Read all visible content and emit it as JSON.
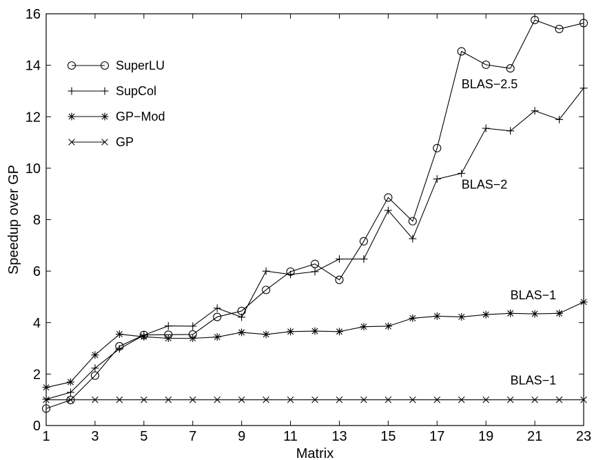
{
  "chart_data": {
    "type": "line",
    "xlabel": "Matrix",
    "ylabel": "Speedup over GP",
    "xlim": [
      1,
      23
    ],
    "ylim": [
      0,
      16
    ],
    "x_ticks": [
      1,
      3,
      5,
      7,
      9,
      11,
      13,
      15,
      17,
      19,
      21,
      23
    ],
    "y_ticks": [
      0,
      2,
      4,
      6,
      8,
      10,
      12,
      14,
      16
    ],
    "grid": false,
    "legend_position": "top-left",
    "x": [
      1,
      2,
      3,
      4,
      5,
      6,
      7,
      8,
      9,
      10,
      11,
      12,
      13,
      14,
      15,
      16,
      17,
      18,
      19,
      20,
      21,
      22,
      23
    ],
    "series": [
      {
        "name": "SuperLU",
        "marker": "circle",
        "values": [
          0.66,
          0.99,
          1.94,
          3.08,
          3.52,
          3.53,
          3.54,
          4.22,
          4.45,
          5.27,
          5.98,
          6.28,
          5.66,
          7.16,
          8.86,
          7.94,
          10.78,
          14.54,
          14.02,
          13.88,
          15.76,
          15.41,
          15.64
        ]
      },
      {
        "name": "SupCol",
        "marker": "plus",
        "values": [
          1.02,
          1.29,
          2.23,
          2.98,
          3.51,
          3.87,
          3.86,
          4.56,
          4.21,
          6.0,
          5.87,
          5.98,
          6.47,
          6.47,
          8.36,
          7.26,
          9.58,
          9.8,
          11.55,
          11.45,
          12.23,
          11.89,
          13.11
        ]
      },
      {
        "name": "GP−Mod",
        "marker": "asterisk",
        "values": [
          1.48,
          1.69,
          2.74,
          3.55,
          3.45,
          3.39,
          3.39,
          3.44,
          3.62,
          3.54,
          3.65,
          3.67,
          3.65,
          3.84,
          3.86,
          4.17,
          4.25,
          4.22,
          4.31,
          4.36,
          4.34,
          4.36,
          4.8
        ]
      },
      {
        "name": "GP",
        "marker": "cross",
        "values": [
          1,
          1,
          1,
          1,
          1,
          1,
          1,
          1,
          1,
          1,
          1,
          1,
          1,
          1,
          1,
          1,
          1,
          1,
          1,
          1,
          1,
          1,
          1
        ]
      }
    ],
    "annotations": [
      {
        "text": "BLAS−2.5",
        "x": 18.0,
        "y": 13.1
      },
      {
        "text": "BLAS−2",
        "x": 18.0,
        "y": 9.2
      },
      {
        "text": "BLAS−1",
        "x": 20.0,
        "y": 4.9
      },
      {
        "text": "BLAS−1",
        "x": 20.0,
        "y": 1.6
      }
    ],
    "line_color": "#000000"
  }
}
